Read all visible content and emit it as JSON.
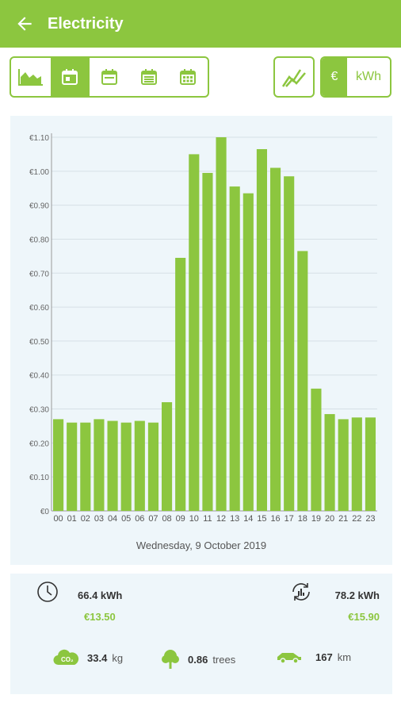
{
  "app": {
    "title": "Electricity"
  },
  "icons": {
    "back": "arrow-left-icon",
    "area_chart": "area-chart-icon",
    "day": "calendar-day-icon",
    "week": "calendar-week-icon",
    "month": "calendar-month-icon",
    "year": "calendar-year-icon",
    "trend": "trend-line-icon",
    "clock": "clock-icon",
    "meter": "meter-cycle-icon",
    "co2": "co2-cloud-icon",
    "tree": "tree-icon",
    "car": "car-icon"
  },
  "colors": {
    "accent": "#8cc63f",
    "panel": "#eef6fa"
  },
  "unit_toggle": {
    "euro": "€",
    "kwh": "kWh"
  },
  "chart_data": {
    "type": "bar",
    "categories": [
      "00",
      "01",
      "02",
      "03",
      "04",
      "05",
      "06",
      "07",
      "08",
      "09",
      "10",
      "11",
      "12",
      "13",
      "14",
      "15",
      "16",
      "17",
      "18",
      "19",
      "20",
      "21",
      "22",
      "23"
    ],
    "values": [
      0.27,
      0.26,
      0.26,
      0.27,
      0.265,
      0.26,
      0.265,
      0.26,
      0.32,
      0.745,
      1.05,
      0.995,
      1.1,
      0.955,
      0.935,
      1.065,
      1.01,
      0.985,
      0.765,
      0.36,
      0.285,
      0.27,
      0.275,
      0.275
    ],
    "ylim": [
      0,
      1.1
    ],
    "yticks": [
      "€0",
      "€0.10",
      "€0.20",
      "€0.30",
      "€0.40",
      "€0.50",
      "€0.60",
      "€0.70",
      "€0.80",
      "€0.90",
      "€1.00",
      "€1.10"
    ],
    "grid": true,
    "color": "#8cc63f",
    "date_label": "Wednesday, 9 October 2019"
  },
  "summary": {
    "left": {
      "kwh": "66.4 kWh",
      "cost": "€13.50"
    },
    "right": {
      "kwh": "78.2 kWh",
      "cost": "€15.90"
    },
    "co2": {
      "value": "33.4",
      "unit": "kg"
    },
    "trees": {
      "value": "0.86",
      "unit": "trees"
    },
    "distance": {
      "value": "167",
      "unit": "km"
    }
  }
}
